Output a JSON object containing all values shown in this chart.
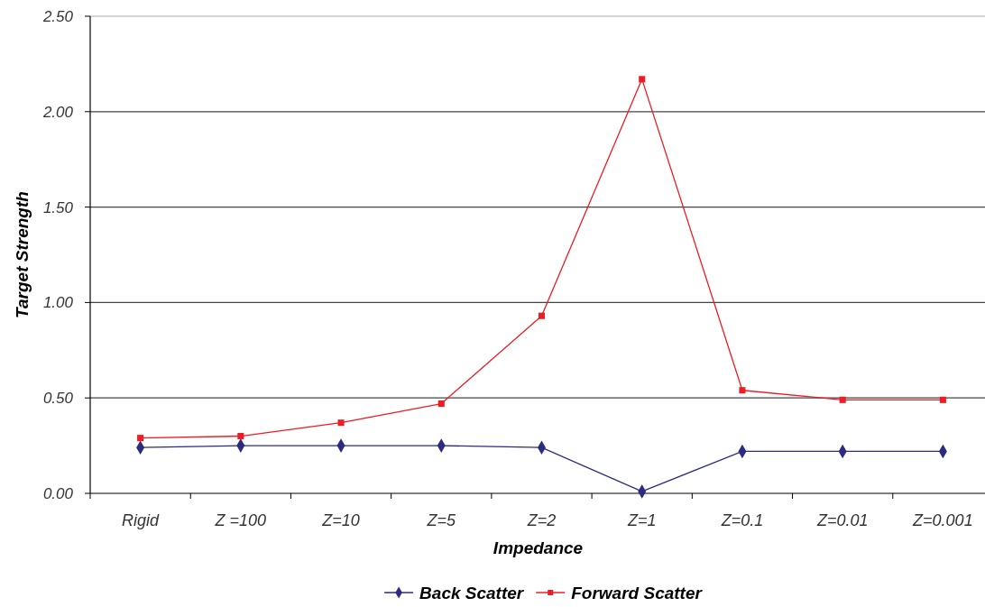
{
  "chart_data": {
    "type": "line",
    "xlabel": "Impedance",
    "ylabel": "Target Strength",
    "categories": [
      "Rigid",
      "Z =100",
      "Z=10",
      "Z=5",
      "Z=2",
      "Z=1",
      "Z=0.1",
      "Z=0.01",
      "Z=0.001"
    ],
    "series": [
      {
        "name": "Back Scatter",
        "color": "#2b2b80",
        "marker": "diamond",
        "values": [
          0.24,
          0.25,
          0.25,
          0.25,
          0.24,
          0.01,
          0.22,
          0.22,
          0.22
        ]
      },
      {
        "name": "Forward Scatter",
        "color": "#ee1c24",
        "marker": "square",
        "values": [
          0.29,
          0.3,
          0.37,
          0.47,
          0.93,
          2.17,
          0.54,
          0.49,
          0.49
        ]
      }
    ],
    "ylim": [
      0,
      2.5
    ],
    "yticks": [
      {
        "value": 0,
        "label": "0.00"
      },
      {
        "value": 0.5,
        "label": "0.50"
      },
      {
        "value": 1,
        "label": "1.00"
      },
      {
        "value": 1.5,
        "label": "1.50"
      },
      {
        "value": 2,
        "label": "2.00"
      },
      {
        "value": 2.5,
        "label": "2.50"
      }
    ],
    "grid": "y",
    "legend": "bottom",
    "line_style": "solid"
  }
}
